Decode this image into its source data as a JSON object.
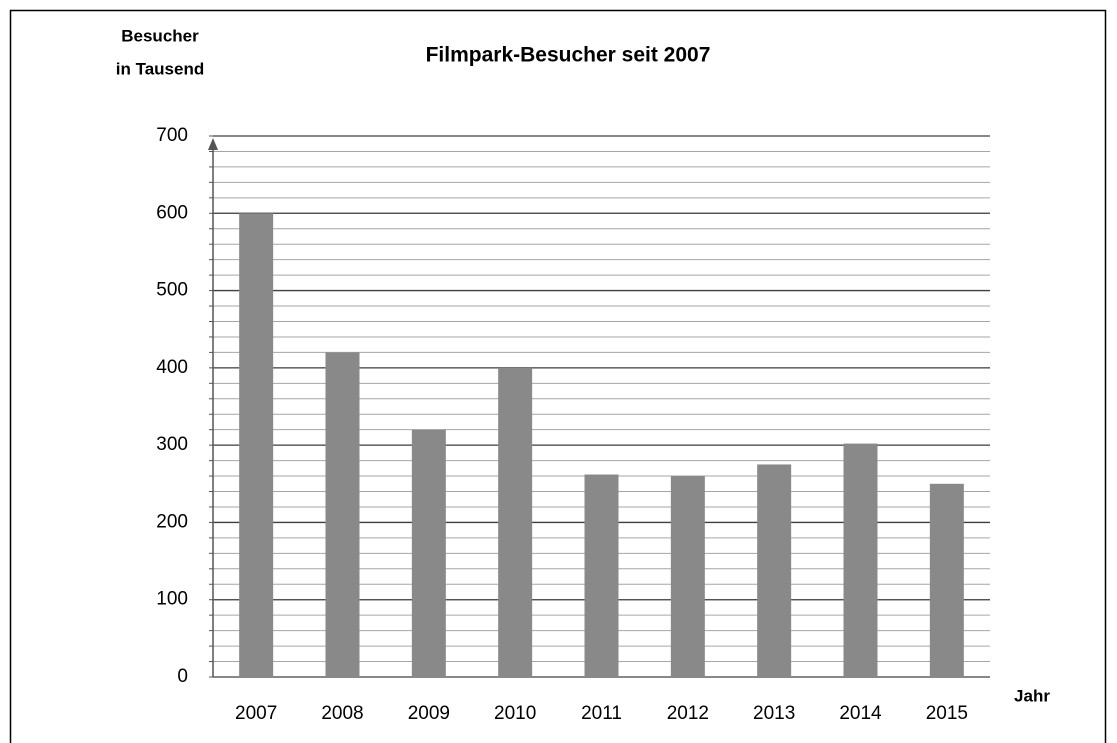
{
  "chart_data": {
    "type": "bar",
    "title": "Filmpark-Besucher seit 2007",
    "ylabel": [
      "Besucher",
      "in Tausend"
    ],
    "xlabel": "Jahr",
    "categories": [
      "2007",
      "2008",
      "2009",
      "2010",
      "2011",
      "2012",
      "2013",
      "2014",
      "2015"
    ],
    "values": [
      600,
      420,
      320,
      400,
      262,
      260,
      275,
      302,
      250
    ],
    "color": "#898989",
    "ylim": [
      0,
      700
    ],
    "yticks": [
      0,
      100,
      200,
      300,
      400,
      500,
      600,
      700
    ],
    "grid": true,
    "minor_grid_step": 20
  }
}
